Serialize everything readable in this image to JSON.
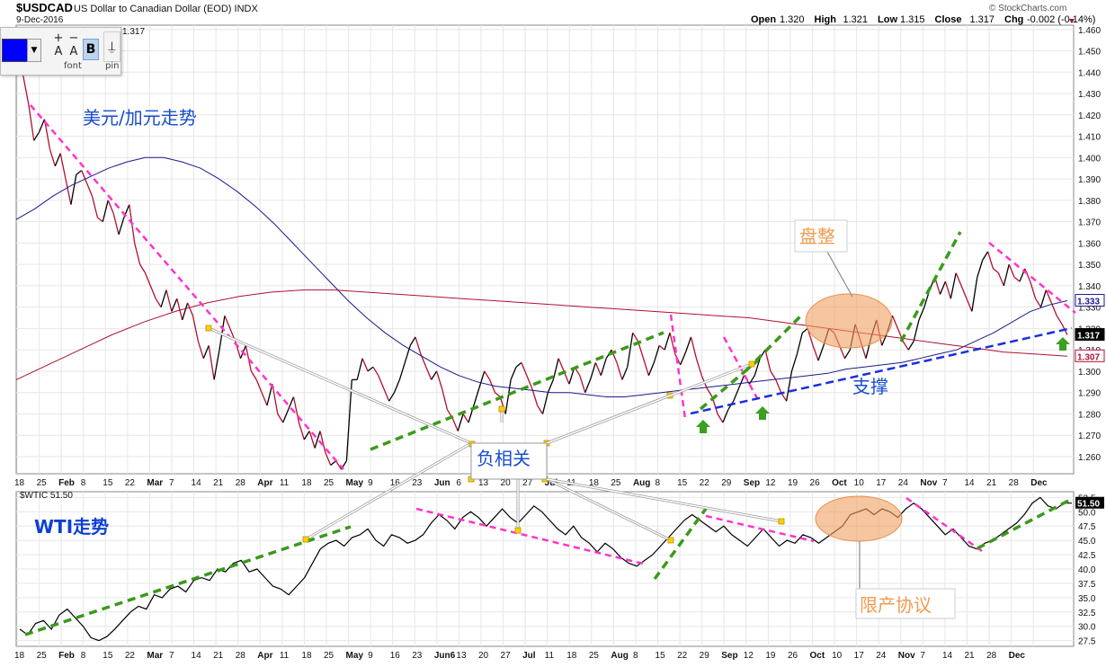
{
  "header": {
    "symbol": "$USDCAD",
    "description": "US Dollar to Canadian Dollar (EOD)",
    "exchange": "INDX",
    "date": "9-Dec-2016",
    "copyright": "© StockCharts.com",
    "ohlc": [
      {
        "label": "Open",
        "value": "1.320"
      },
      {
        "label": "High",
        "value": "1.321"
      },
      {
        "label": "Low",
        "value": "1.315"
      },
      {
        "label": "Close",
        "value": "1.317"
      },
      {
        "label": "Chg",
        "value": "-0.002 (-0.14%)"
      }
    ],
    "overlay_legend": "1.317"
  },
  "toolbar": {
    "font_label": "font",
    "pin_label": "pin",
    "bold_label": "B",
    "color": "#0000ff"
  },
  "chart_data": [
    {
      "type": "line",
      "panel": "upper",
      "symbol": "$USDCAD",
      "yticks": [
        "1.460",
        "1.450",
        "1.440",
        "1.430",
        "1.420",
        "1.410",
        "1.400",
        "1.390",
        "1.380",
        "1.370",
        "1.360",
        "1.350",
        "1.340",
        "1.330",
        "1.320",
        "1.310",
        "1.300",
        "1.290",
        "1.280",
        "1.270",
        "1.260"
      ],
      "ylim": [
        1.252,
        1.462
      ],
      "xtick_labels": [
        "18",
        "25",
        "Feb",
        "8",
        "15",
        "22",
        "Mar",
        "7",
        "14",
        "21",
        "28",
        "Apr",
        "11",
        "18",
        "25",
        "May",
        "9",
        "16",
        "23",
        "Jun",
        "6",
        "13",
        "20",
        "27",
        "Jul",
        "11",
        "18",
        "25",
        "Aug",
        "8",
        "15",
        "22",
        "29",
        "Sep",
        "12",
        "19",
        "26",
        "Oct",
        "10",
        "17",
        "24",
        "Nov",
        "7",
        "14",
        "21",
        "28",
        "Dec"
      ],
      "series": [
        {
          "values": [
            1.448,
            1.438,
            1.425,
            1.408,
            1.412,
            1.418,
            1.404,
            1.396,
            1.402,
            1.39,
            1.378,
            1.392,
            1.394,
            1.388,
            1.382,
            1.372,
            1.37,
            1.38,
            1.374,
            1.364,
            1.372,
            1.378,
            1.36,
            1.35,
            1.346,
            1.34,
            1.334,
            1.33,
            1.338,
            1.328,
            1.334,
            1.324,
            1.332,
            1.326,
            1.314,
            1.306,
            1.312,
            1.296,
            1.31,
            1.326,
            1.32,
            1.314,
            1.306,
            1.312,
            1.3,
            1.296,
            1.29,
            1.284,
            1.294,
            1.28,
            1.276,
            1.282,
            1.288,
            1.276,
            1.268,
            1.272,
            1.264,
            1.272,
            1.262,
            1.256,
            1.258,
            1.254,
            1.258,
            1.296,
            1.296,
            1.306,
            1.3,
            1.302,
            1.298,
            1.292,
            1.286,
            1.29,
            1.296,
            1.304,
            1.312,
            1.316,
            1.308,
            1.302,
            1.296,
            1.3,
            1.292,
            1.282,
            1.278,
            1.272,
            1.28,
            1.276,
            1.284,
            1.292,
            1.3,
            1.296,
            1.29,
            1.288,
            1.28,
            1.296,
            1.302,
            1.304,
            1.298,
            1.292,
            1.284,
            1.28,
            1.29,
            1.296,
            1.306,
            1.3,
            1.294,
            1.302,
            1.298,
            1.29,
            1.296,
            1.304,
            1.298,
            1.306,
            1.31,
            1.304,
            1.296,
            1.302,
            1.318,
            1.314,
            1.306,
            1.298,
            1.304,
            1.312,
            1.31,
            1.318,
            1.308,
            1.303,
            1.309,
            1.316,
            1.306,
            1.298,
            1.292,
            1.288,
            1.28,
            1.276,
            1.282,
            1.286,
            1.292,
            1.298,
            1.294,
            1.298,
            1.306,
            1.31,
            1.3,
            1.296,
            1.29,
            1.286,
            1.3,
            1.308,
            1.318,
            1.32,
            1.312,
            1.305,
            1.312,
            1.32,
            1.318,
            1.312,
            1.306,
            1.31,
            1.322,
            1.314,
            1.306,
            1.316,
            1.324,
            1.312,
            1.318,
            1.326,
            1.32,
            1.314,
            1.31,
            1.314,
            1.324,
            1.33,
            1.338,
            1.344,
            1.336,
            1.342,
            1.334,
            1.346,
            1.34,
            1.334,
            1.328,
            1.344,
            1.352,
            1.356,
            1.348,
            1.346,
            1.34,
            1.35,
            1.344,
            1.342,
            1.348,
            1.342,
            1.334,
            1.33,
            1.338,
            1.332,
            1.326,
            1.322,
            1.317
          ],
          "color": "#000000"
        },
        {
          "name": "MA",
          "values": [
            1.371,
            1.376,
            1.382,
            1.387,
            1.391,
            1.395,
            1.398,
            1.4,
            1.4,
            1.398,
            1.395,
            1.39,
            1.384,
            1.377,
            1.369,
            1.36,
            1.351,
            1.342,
            1.333,
            1.325,
            1.318,
            1.312,
            1.307,
            1.302,
            1.298,
            1.295,
            1.293,
            1.292,
            1.291,
            1.29,
            1.29,
            1.289,
            1.288,
            1.288,
            1.289,
            1.29,
            1.291,
            1.292,
            1.293,
            1.294,
            1.295,
            1.296,
            1.297,
            1.298,
            1.299,
            1.301,
            1.302,
            1.303,
            1.304,
            1.306,
            1.308,
            1.31,
            1.314,
            1.318,
            1.323,
            1.328,
            1.331,
            1.333
          ],
          "color": "#1a1a8c"
        },
        {
          "name": "MA",
          "values": [
            1.296,
            1.303,
            1.31,
            1.317,
            1.323,
            1.328,
            1.332,
            1.335,
            1.337,
            1.338,
            1.338,
            1.337,
            1.336,
            1.335,
            1.334,
            1.333,
            1.332,
            1.331,
            1.33,
            1.329,
            1.328,
            1.327,
            1.326,
            1.325,
            1.323,
            1.321,
            1.319,
            1.317,
            1.315,
            1.313,
            1.311,
            1.309,
            1.308,
            1.307
          ],
          "color": "#b01030"
        }
      ],
      "price_labels": [
        "1.333",
        "1.317",
        "1.307"
      ],
      "annotations": [
        {
          "text": "美元/加元走势",
          "color": "#1a4dcc"
        },
        {
          "text": "盘整",
          "color": "#f09a50"
        },
        {
          "text": "支撑",
          "color": "#1a4dcc"
        },
        {
          "text": "负相关",
          "color": "#1a4dcc"
        }
      ]
    },
    {
      "type": "line",
      "panel": "lower",
      "symbol": "$WTIC",
      "legend": "$WTIC 51.50",
      "yticks": [
        "52.5",
        "50.0",
        "47.5",
        "45.0",
        "42.5",
        "40.0",
        "37.5",
        "35.0",
        "32.5",
        "30.0",
        "27.5"
      ],
      "ylim": [
        26.5,
        53.5
      ],
      "xtick_labels": [
        "18",
        "25",
        "Feb",
        "8",
        "15",
        "22",
        "Mar",
        "7",
        "14",
        "21",
        "28",
        "Apr",
        "11",
        "18",
        "25",
        "May",
        "9",
        "16",
        "23",
        "Jun6",
        "13",
        "20",
        "27",
        "Jul",
        "11",
        "18",
        "25",
        "Aug",
        "8",
        "15",
        "22",
        "29",
        "Sep",
        "12",
        "19",
        "26",
        "Oct",
        "10",
        "17",
        "24",
        "Nov",
        "7",
        "14",
        "21",
        "28",
        "Dec"
      ],
      "series": [
        {
          "values": [
            29.5,
            28.5,
            30.5,
            31.0,
            29.5,
            32.0,
            33.0,
            31.5,
            30.0,
            28.0,
            27.5,
            28.2,
            29.5,
            31.0,
            32.5,
            33.5,
            33.0,
            35.5,
            35.0,
            36.5,
            37.0,
            36.0,
            38.0,
            38.5,
            38.0,
            40.0,
            39.5,
            41.0,
            41.5,
            39.5,
            40.0,
            38.5,
            37.0,
            36.5,
            35.5,
            37.0,
            38.5,
            41.0,
            43.5,
            44.5,
            45.0,
            44.0,
            45.5,
            46.0,
            47.0,
            45.0,
            44.0,
            46.0,
            45.5,
            44.5,
            45.0,
            46.0,
            48.0,
            49.5,
            48.5,
            47.0,
            49.0,
            50.0,
            49.0,
            47.5,
            49.0,
            50.5,
            49.0,
            48.0,
            49.5,
            51.0,
            50.0,
            48.5,
            47.0,
            46.0,
            47.5,
            45.5,
            44.5,
            43.0,
            44.5,
            43.5,
            42.0,
            41.0,
            40.5,
            41.5,
            42.5,
            44.0,
            45.5,
            47.0,
            48.5,
            49.5,
            48.5,
            47.5,
            46.5,
            47.5,
            46.0,
            45.0,
            44.0,
            45.5,
            47.0,
            45.5,
            44.0,
            45.0,
            44.5,
            46.0,
            45.5,
            44.5,
            45.5,
            46.5,
            47.5,
            49.5,
            50.0,
            50.5,
            49.5,
            50.5,
            50.0,
            49.0,
            50.5,
            51.5,
            50.5,
            49.0,
            47.5,
            46.0,
            47.0,
            45.5,
            44.0,
            43.5,
            44.5,
            45.0,
            46.0,
            47.0,
            48.0,
            49.5,
            51.5,
            52.5,
            51.0,
            50.5,
            51.5,
            51.5
          ],
          "color": "#000000"
        }
      ],
      "price_labels": [
        "51.50"
      ],
      "annotations": [
        {
          "text": "WTI走势",
          "color": "#0d3fd6"
        },
        {
          "text": "限产协议",
          "color": "#f09a50"
        }
      ]
    }
  ]
}
